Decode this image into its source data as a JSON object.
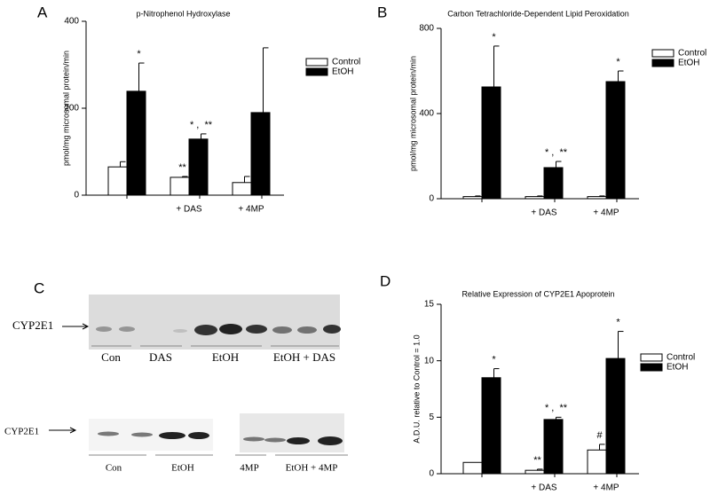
{
  "chart_data": [
    {
      "type": "bar",
      "panel_label": "A",
      "title": "p-Nitrophenol Hydroxylase",
      "y_label": "pmol/mg microsomal protein/min",
      "categories": [
        null,
        "+ DAS",
        "+ 4MP"
      ],
      "ylim": [
        0,
        400
      ],
      "yticks": [
        0,
        200,
        400
      ],
      "legend": "upper right",
      "series": [
        {
          "name": "Control",
          "color": "#ffffff",
          "values": [
            65,
            41,
            29
          ],
          "errors": [
            12,
            2,
            14
          ],
          "annotations": [
            null,
            "**",
            null
          ]
        },
        {
          "name": "EtOH",
          "color": "#000000",
          "values": [
            239,
            129,
            190
          ],
          "errors": [
            65,
            12,
            149
          ],
          "annotations": [
            "*",
            "* ,  **",
            null
          ]
        }
      ]
    },
    {
      "type": "bar",
      "panel_label": "B",
      "title": "Carbon Tetrachloride-Dependent Lipid Peroxidation",
      "y_label": "pmol/mg microsomal protein/min",
      "categories": [
        null,
        "+ DAS",
        "+ 4MP"
      ],
      "ylim": [
        0,
        800
      ],
      "yticks": [
        0,
        400,
        800
      ],
      "legend": "upper right",
      "series": [
        {
          "name": "Control",
          "color": "#ffffff",
          "values": [
            10,
            10,
            10
          ],
          "errors": [
            3,
            3,
            3
          ],
          "annotations": [
            null,
            null,
            null
          ]
        },
        {
          "name": "EtOH",
          "color": "#000000",
          "values": [
            525,
            146,
            550
          ],
          "errors": [
            192,
            29,
            50
          ],
          "annotations": [
            "*",
            "* ,  **",
            "*"
          ]
        }
      ]
    },
    {
      "type": "bar",
      "panel_label": "D",
      "title": "Relative Expression of CYP2E1 Apoprotein",
      "y_label": "A.D.U. relative to Control = 1.0",
      "categories": [
        null,
        "+ DAS",
        "+ 4MP"
      ],
      "ylim": [
        0,
        15
      ],
      "yticks": [
        0,
        5,
        10,
        15
      ],
      "legend": "upper right",
      "series": [
        {
          "name": "Control",
          "color": "#ffffff",
          "values": [
            1.0,
            0.3,
            2.1
          ],
          "errors": [
            null,
            0.1,
            0.5
          ],
          "annotations": [
            null,
            "**",
            "#"
          ]
        },
        {
          "name": "EtOH",
          "color": "#000000",
          "values": [
            8.5,
            4.8,
            10.2
          ],
          "errors": [
            0.8,
            0.2,
            2.4
          ],
          "annotations": [
            "*",
            "* ,  **",
            "*"
          ]
        }
      ]
    }
  ],
  "blot": {
    "panel_label": "C",
    "upper": {
      "protein": "CYP2E1",
      "lanes": [
        "Con",
        "DAS",
        "EtOH",
        "EtOH + DAS"
      ]
    },
    "lower": {
      "protein": "CYP2E1",
      "lanes": [
        "Con",
        "EtOH",
        "4MP",
        "EtOH + 4MP"
      ]
    }
  }
}
